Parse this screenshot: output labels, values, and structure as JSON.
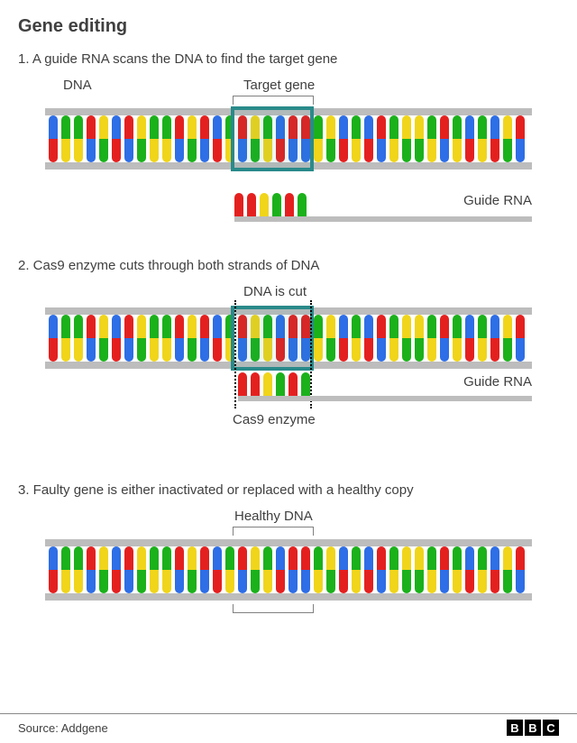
{
  "title": "Gene editing",
  "steps": [
    {
      "text": "1. A guide RNA scans the DNA to find the target gene",
      "dna_label": "DNA",
      "target_label": "Target gene",
      "guide_label": "Guide RNA"
    },
    {
      "text": "2. Cas9 enzyme cuts through both strands of DNA",
      "cut_label": "DNA is cut",
      "guide_label": "Guide RNA",
      "cas9_label": "Cas9 enzyme"
    },
    {
      "text": "3. Faulty gene is either inactivated or replaced with a healthy copy",
      "healthy_label": "Healthy DNA"
    }
  ],
  "colors": {
    "red": "#e4201f",
    "green": "#1bb11b",
    "blue": "#2e6ee6",
    "yellow": "#f0d51b",
    "backbone": "#bdbdbd",
    "teal": "#2a8a8a"
  },
  "dna_pattern": [
    "blue",
    "green",
    "green",
    "red",
    "yellow",
    "blue",
    "red",
    "yellow",
    "green",
    "green",
    "red",
    "yellow",
    "red",
    "blue",
    "green",
    "red",
    "yellow",
    "green",
    "blue",
    "red",
    "red",
    "green",
    "yellow",
    "blue",
    "green",
    "blue",
    "red",
    "green",
    "yellow",
    "yellow",
    "green",
    "red",
    "green",
    "blue",
    "green",
    "blue",
    "yellow",
    "red"
  ],
  "complement": {
    "blue": "red",
    "red": "blue",
    "green": "yellow",
    "yellow": "green"
  },
  "guide_rna_bases": [
    "red",
    "red",
    "yellow",
    "green",
    "red",
    "green"
  ],
  "footer": {
    "source": "Source: Addgene",
    "logo": [
      "B",
      "B",
      "C"
    ]
  },
  "layout": {
    "strand_width": 560,
    "base_w": 10,
    "base_gap": 4,
    "base_h": 26,
    "backbone_h": 8,
    "target_start_idx": 17,
    "target_len": 6
  }
}
